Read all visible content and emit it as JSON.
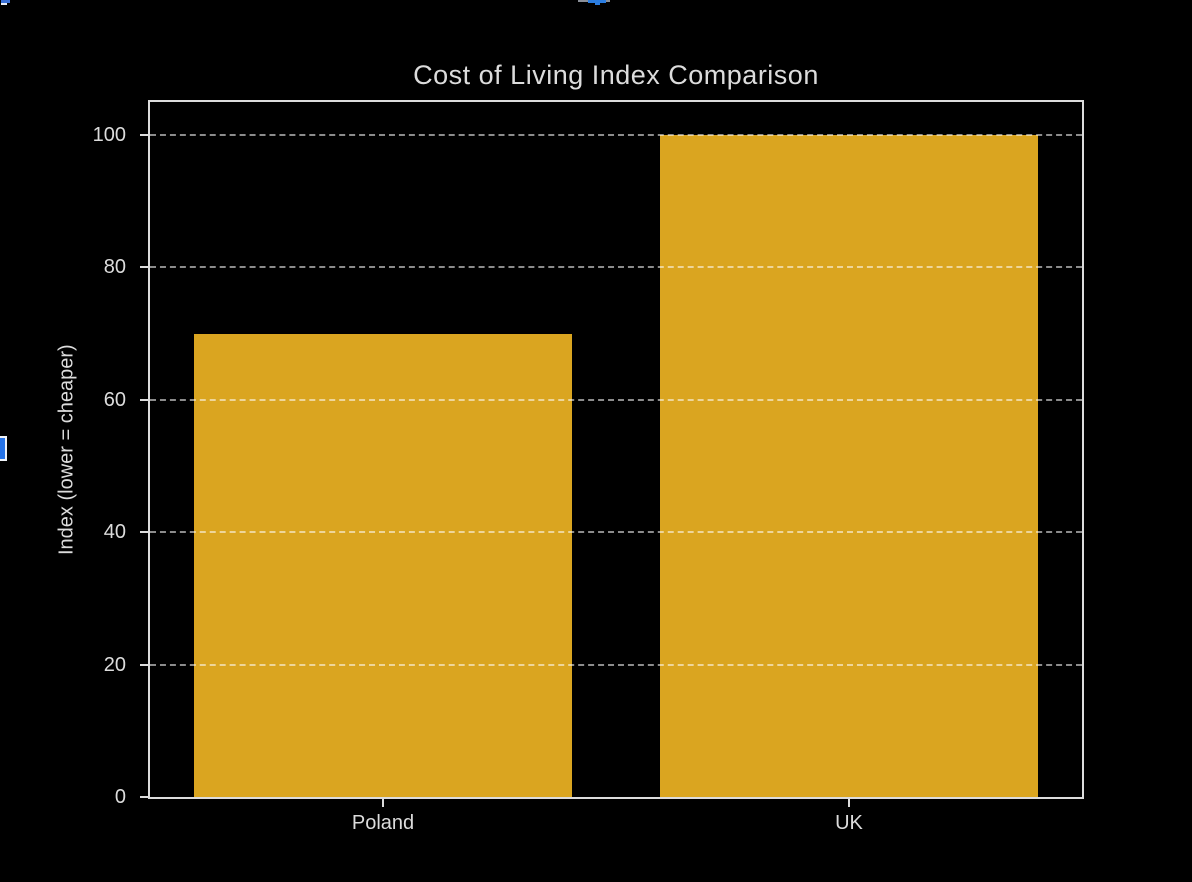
{
  "chart_data": {
    "type": "bar",
    "title": "Cost of Living Index Comparison",
    "categories": [
      "Poland",
      "UK"
    ],
    "values": [
      70,
      100
    ],
    "xlabel": "",
    "ylabel": "Index (lower = cheaper)",
    "ylim": [
      0,
      105
    ],
    "yticks": [
      0,
      20,
      40,
      60,
      80,
      100
    ],
    "legend": "none",
    "grid": {
      "on": true,
      "axis": "y",
      "style": "dashed"
    },
    "bar_width_fraction": 0.81,
    "colors": {
      "bar": "#DAA520",
      "background": "#000000",
      "text": "#DCDCDC",
      "spine": "#DCDCDC",
      "tick": "#DCDCDC",
      "grid": "rgba(255,255,255,0.55)"
    }
  },
  "artifacts": {
    "top_left_fragment": {
      "blue": "#3B72D9",
      "white": "#E8EEF7"
    },
    "top_center_fragment": {
      "blue": "#2B7DE0",
      "gray": "#8A8F98"
    },
    "left_edge_fragment": {
      "blue": "#2573E8",
      "white": "#F0F3F8"
    }
  }
}
